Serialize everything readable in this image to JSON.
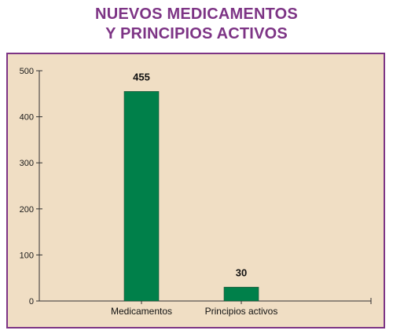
{
  "title_lines": [
    "NUEVOS MEDICAMENTOS",
    "Y PRINCIPIOS ACTIVOS"
  ],
  "colors": {
    "title": "#7d3485",
    "panel_background": "#f0dec4",
    "panel_border": "#7d3485",
    "bar": "#00804a",
    "axis": "#333333"
  },
  "chart_data": {
    "type": "bar",
    "title": "NUEVOS MEDICAMENTOS Y PRINCIPIOS ACTIVOS",
    "categories": [
      "Medicamentos",
      "Principios activos"
    ],
    "values": [
      455,
      30
    ],
    "data_labels": [
      "455",
      "30"
    ],
    "ylim": [
      0,
      500
    ],
    "yticks": [
      0,
      100,
      200,
      300,
      400,
      500
    ],
    "xlabel": "",
    "ylabel": "",
    "grid": false,
    "legend": "none"
  }
}
